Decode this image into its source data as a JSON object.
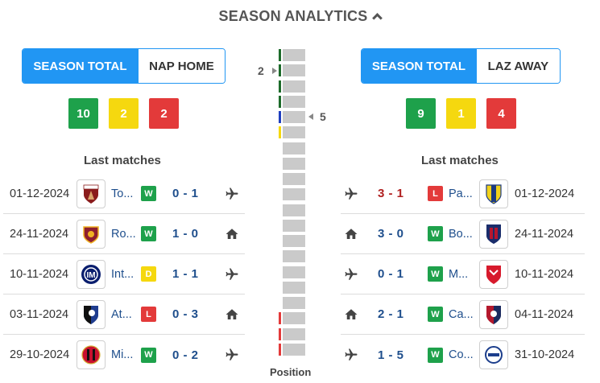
{
  "header": {
    "title": "SEASON ANALYTICS"
  },
  "left": {
    "tabs": [
      "SEASON TOTAL",
      "NAP HOME"
    ],
    "counts": {
      "w": "10",
      "d": "2",
      "l": "2"
    },
    "last_matches_title": "Last matches",
    "matches": [
      {
        "date": "01-12-2024",
        "team": "To...",
        "result": "W",
        "score": "0 - 1",
        "venue": "away"
      },
      {
        "date": "24-11-2024",
        "team": "Ro...",
        "result": "W",
        "score": "1 - 0",
        "venue": "home"
      },
      {
        "date": "10-11-2024",
        "team": "Int...",
        "result": "D",
        "score": "1 - 1",
        "venue": "away"
      },
      {
        "date": "03-11-2024",
        "team": "At...",
        "result": "L",
        "score": "0 - 3",
        "venue": "home"
      },
      {
        "date": "29-10-2024",
        "team": "Mi...",
        "result": "W",
        "score": "0 - 2",
        "venue": "away"
      }
    ]
  },
  "right": {
    "tabs": [
      "SEASON TOTAL",
      "LAZ AWAY"
    ],
    "counts": {
      "w": "9",
      "d": "1",
      "l": "4"
    },
    "last_matches_title": "Last matches",
    "matches": [
      {
        "date": "01-12-2024",
        "team": "Pa...",
        "result": "L",
        "score": "3 - 1",
        "venue": "away"
      },
      {
        "date": "24-11-2024",
        "team": "Bo...",
        "result": "W",
        "score": "3 - 0",
        "venue": "home"
      },
      {
        "date": "10-11-2024",
        "team": "M...",
        "result": "W",
        "score": "0 - 1",
        "venue": "away"
      },
      {
        "date": "04-11-2024",
        "team": "Ca...",
        "result": "W",
        "score": "2 - 1",
        "venue": "home"
      },
      {
        "date": "31-10-2024",
        "team": "Co...",
        "result": "W",
        "score": "1 - 5",
        "venue": "away"
      }
    ]
  },
  "position": {
    "label": "Position",
    "left_pos": "2",
    "right_pos": "5",
    "total_slots": 20
  },
  "colors": {
    "accent": "#2196f3",
    "win": "#1ea14b",
    "draw": "#f5d80f",
    "loss": "#e33a3a"
  }
}
